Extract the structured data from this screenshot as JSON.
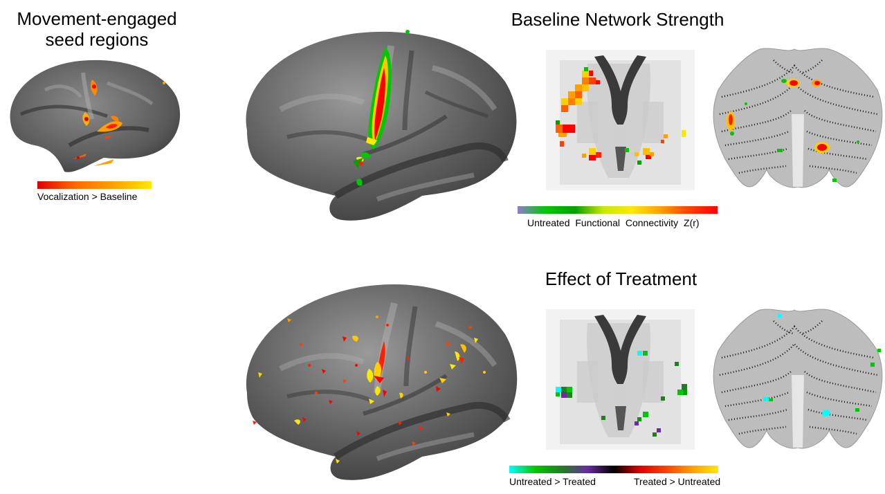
{
  "seed_panel": {
    "title_line1": "Movement-engaged",
    "title_line2": "seed regions",
    "colorbar_label": "Vocalization > Baseline",
    "colorbar_stops": [
      "#e00000",
      "#ff6a00",
      "#ffa000",
      "#ffe800"
    ]
  },
  "baseline_panel": {
    "title": "Baseline Network Strength",
    "colorbar_label_parts": [
      "Untreated",
      "Functional",
      "Connectivity",
      "Z(r)"
    ],
    "colorbar_stops": [
      "#8a80c8",
      "#00c800",
      "#00a000",
      "#c8e800",
      "#ffe800",
      "#ffa000",
      "#ff4000",
      "#ff0000"
    ]
  },
  "treatment_panel": {
    "title": "Effect of Treatment",
    "colorbar_label_left": "Untreated > Treated",
    "colorbar_label_right": "Treated > Untreated",
    "colorbar_stops": [
      "#00ffff",
      "#00c800",
      "#208020",
      "#6a2aa0",
      "#000000",
      "#e00000",
      "#ff4000",
      "#ffa000",
      "#ffe800"
    ]
  },
  "colors": {
    "cortex_dark": "#4a4a4a",
    "cortex_light": "#9a9a9a",
    "activation_red": "#ff0000",
    "activation_yellow": "#ffe800",
    "activation_green": "#00c800"
  }
}
